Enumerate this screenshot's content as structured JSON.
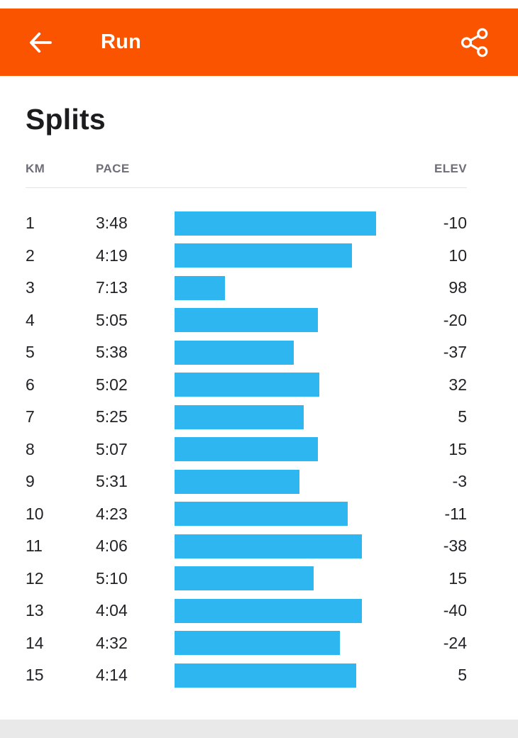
{
  "header": {
    "title": "Run",
    "back_icon": "back-arrow-icon",
    "share_icon": "share-icon",
    "accent_color": "#FA5400"
  },
  "splits": {
    "title": "Splits",
    "columns": {
      "km": "KM",
      "pace": "PACE",
      "elev": "ELEV"
    }
  },
  "chart_data": {
    "type": "bar",
    "title": "Splits",
    "orientation": "horizontal",
    "bar_color": "#2EB6F0",
    "columns": [
      "KM",
      "PACE",
      "ELEV"
    ],
    "rows": [
      {
        "km": "1",
        "pace": "3:48",
        "elev": "-10",
        "bar_pct": 100
      },
      {
        "km": "2",
        "pace": "4:19",
        "elev": "10",
        "bar_pct": 88
      },
      {
        "km": "3",
        "pace": "7:13",
        "elev": "98",
        "bar_pct": 25
      },
      {
        "km": "4",
        "pace": "5:05",
        "elev": "-20",
        "bar_pct": 71
      },
      {
        "km": "5",
        "pace": "5:38",
        "elev": "-37",
        "bar_pct": 59
      },
      {
        "km": "6",
        "pace": "5:02",
        "elev": "32",
        "bar_pct": 72
      },
      {
        "km": "7",
        "pace": "5:25",
        "elev": "5",
        "bar_pct": 64
      },
      {
        "km": "8",
        "pace": "5:07",
        "elev": "15",
        "bar_pct": 71
      },
      {
        "km": "9",
        "pace": "5:31",
        "elev": "-3",
        "bar_pct": 62
      },
      {
        "km": "10",
        "pace": "4:23",
        "elev": "-11",
        "bar_pct": 86
      },
      {
        "km": "11",
        "pace": "4:06",
        "elev": "-38",
        "bar_pct": 93
      },
      {
        "km": "12",
        "pace": "5:10",
        "elev": "15",
        "bar_pct": 69
      },
      {
        "km": "13",
        "pace": "4:04",
        "elev": "-40",
        "bar_pct": 93
      },
      {
        "km": "14",
        "pace": "4:32",
        "elev": "-24",
        "bar_pct": 82
      },
      {
        "km": "15",
        "pace": "4:14",
        "elev": "5",
        "bar_pct": 90
      }
    ]
  }
}
